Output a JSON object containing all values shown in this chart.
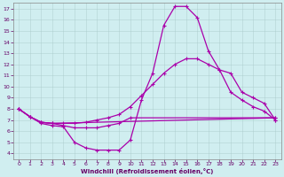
{
  "background_color": "#d0eef0",
  "line_color": "#aa00aa",
  "marker": "+",
  "xlabel": "Windchill (Refroidissement éolien,°C)",
  "xlabel_color": "#660066",
  "tick_color": "#660066",
  "xlim": [
    -0.5,
    23.5
  ],
  "ylim": [
    3.5,
    17.5
  ],
  "xticks": [
    0,
    1,
    2,
    3,
    4,
    5,
    6,
    7,
    8,
    9,
    10,
    11,
    12,
    13,
    14,
    15,
    16,
    17,
    18,
    19,
    20,
    21,
    22,
    23
  ],
  "yticks": [
    4,
    5,
    6,
    7,
    8,
    9,
    10,
    11,
    12,
    13,
    14,
    15,
    16,
    17
  ],
  "series1": [
    [
      0,
      8.0
    ],
    [
      1,
      7.3
    ],
    [
      2,
      6.7
    ],
    [
      3,
      6.5
    ],
    [
      4,
      6.4
    ],
    [
      5,
      5.0
    ],
    [
      6,
      4.5
    ],
    [
      7,
      4.3
    ],
    [
      8,
      4.3
    ],
    [
      9,
      4.3
    ],
    [
      10,
      5.2
    ],
    [
      11,
      8.8
    ],
    [
      12,
      11.2
    ],
    [
      13,
      15.5
    ],
    [
      14,
      17.2
    ],
    [
      15,
      17.2
    ],
    [
      16,
      16.2
    ],
    [
      17,
      13.2
    ],
    [
      18,
      11.5
    ],
    [
      19,
      9.5
    ],
    [
      20,
      8.8
    ],
    [
      21,
      8.2
    ],
    [
      22,
      7.8
    ],
    [
      23,
      7.0
    ]
  ],
  "series2": [
    [
      0,
      8.0
    ],
    [
      1,
      7.3
    ],
    [
      2,
      6.8
    ],
    [
      3,
      6.7
    ],
    [
      4,
      6.7
    ],
    [
      5,
      6.7
    ],
    [
      6,
      6.8
    ],
    [
      7,
      7.0
    ],
    [
      8,
      7.2
    ],
    [
      9,
      7.5
    ],
    [
      10,
      8.2
    ],
    [
      11,
      9.2
    ],
    [
      12,
      10.2
    ],
    [
      13,
      11.2
    ],
    [
      14,
      12.0
    ],
    [
      15,
      12.5
    ],
    [
      16,
      12.5
    ],
    [
      17,
      12.0
    ],
    [
      18,
      11.5
    ],
    [
      19,
      11.2
    ],
    [
      20,
      9.5
    ],
    [
      21,
      9.0
    ],
    [
      22,
      8.5
    ],
    [
      23,
      7.0
    ]
  ],
  "series3": [
    [
      0,
      8.0
    ],
    [
      1,
      7.3
    ],
    [
      2,
      6.8
    ],
    [
      3,
      6.7
    ],
    [
      23,
      7.2
    ]
  ],
  "series4": [
    [
      0,
      8.0
    ],
    [
      1,
      7.3
    ],
    [
      2,
      6.8
    ],
    [
      3,
      6.7
    ],
    [
      4,
      6.5
    ],
    [
      5,
      6.3
    ],
    [
      6,
      6.3
    ],
    [
      7,
      6.3
    ],
    [
      8,
      6.5
    ],
    [
      9,
      6.7
    ],
    [
      10,
      7.2
    ],
    [
      23,
      7.2
    ]
  ]
}
